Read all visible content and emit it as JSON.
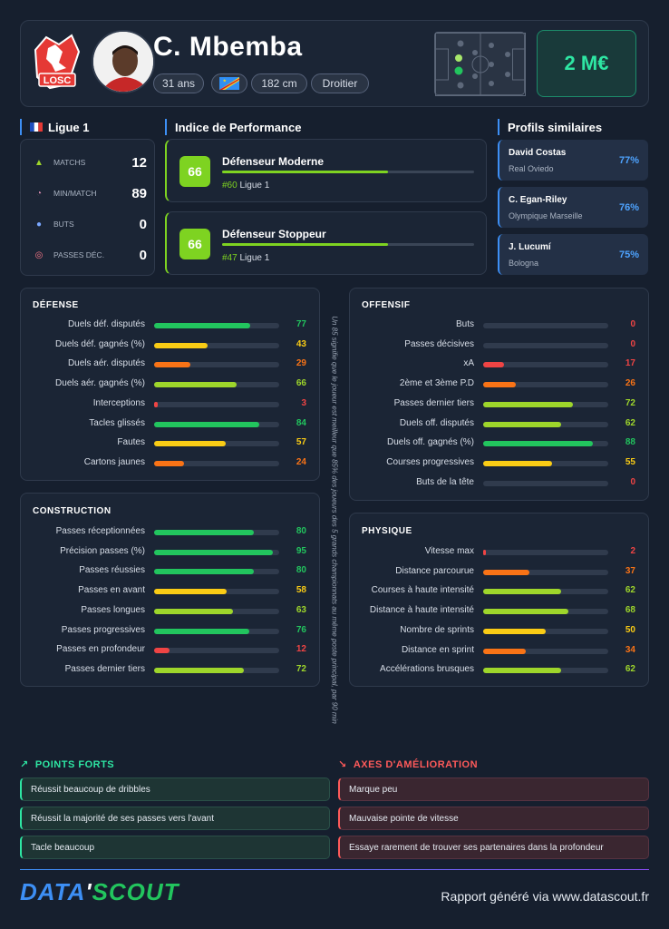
{
  "header": {
    "player_name": "C. Mbemba",
    "age": "31 ans",
    "height": "182 cm",
    "foot": "Droitier",
    "club_logo_text": "LOSC",
    "market_value": "2 M€"
  },
  "league": {
    "title": "Ligue 1",
    "stats": [
      {
        "label": "MATCHS",
        "value": "12",
        "icon": "field-icon"
      },
      {
        "label": "MIN/MATCH",
        "value": "89",
        "icon": "clock-icon"
      },
      {
        "label": "BUTS",
        "value": "0",
        "icon": "ball-icon"
      },
      {
        "label": "PASSES DÉC.",
        "value": "0",
        "icon": "target-icon"
      }
    ]
  },
  "performance": {
    "title": "Indice de Performance",
    "cards": [
      {
        "score": "66",
        "name": "Défenseur Moderne",
        "rank": "#60",
        "league": "Ligue 1",
        "fill": 0.66
      },
      {
        "score": "66",
        "name": "Défenseur Stoppeur",
        "rank": "#47",
        "league": "Ligue 1",
        "fill": 0.66
      }
    ]
  },
  "similar": {
    "title": "Profils similaires",
    "items": [
      {
        "name": "David Costas",
        "club": "Real Oviedo",
        "pct": "77%"
      },
      {
        "name": "C. Egan-Riley",
        "club": "Olympique Marseille",
        "pct": "76%"
      },
      {
        "name": "J. Lucumí",
        "club": "Bologna",
        "pct": "75%"
      }
    ]
  },
  "panels": {
    "defense": {
      "title": "Défense",
      "rows": [
        {
          "label": "Duels déf. disputés",
          "value": 77
        },
        {
          "label": "Duels déf. gagnés (%)",
          "value": 43
        },
        {
          "label": "Duels aér. disputés",
          "value": 29
        },
        {
          "label": "Duels aér. gagnés (%)",
          "value": 66
        },
        {
          "label": "Interceptions",
          "value": 3
        },
        {
          "label": "Tacles glissés",
          "value": 84
        },
        {
          "label": "Fautes",
          "value": 57
        },
        {
          "label": "Cartons jaunes",
          "value": 24
        }
      ]
    },
    "construction": {
      "title": "Construction",
      "rows": [
        {
          "label": "Passes réceptionnées",
          "value": 80
        },
        {
          "label": "Précision passes (%)",
          "value": 95
        },
        {
          "label": "Passes réussies",
          "value": 80
        },
        {
          "label": "Passes en avant",
          "value": 58
        },
        {
          "label": "Passes longues",
          "value": 63
        },
        {
          "label": "Passes progressives",
          "value": 76
        },
        {
          "label": "Passes en profondeur",
          "value": 12
        },
        {
          "label": "Passes dernier tiers",
          "value": 72
        }
      ]
    },
    "offensif": {
      "title": "Offensif",
      "rows": [
        {
          "label": "Buts",
          "value": 0
        },
        {
          "label": "Passes décisives",
          "value": 0
        },
        {
          "label": "xA",
          "value": 17
        },
        {
          "label": "2ème et 3ème P.D",
          "value": 26
        },
        {
          "label": "Passes dernier tiers",
          "value": 72
        },
        {
          "label": "Duels off. disputés",
          "value": 62
        },
        {
          "label": "Duels off. gagnés (%)",
          "value": 88
        },
        {
          "label": "Courses progressives",
          "value": 55
        },
        {
          "label": "Buts de la tête",
          "value": 0
        }
      ]
    },
    "physique": {
      "title": "Physique",
      "rows": [
        {
          "label": "Vitesse max",
          "value": 2
        },
        {
          "label": "Distance parcourue",
          "value": 37
        },
        {
          "label": "Courses à haute intensité",
          "value": 62
        },
        {
          "label": "Distance à haute intensité",
          "value": 68
        },
        {
          "label": "Nombre de sprints",
          "value": 50
        },
        {
          "label": "Distance en sprint",
          "value": 34
        },
        {
          "label": "Accélérations brusques",
          "value": 62
        }
      ]
    }
  },
  "note": "Un 85 signifie que le joueur est meilleur que 85% des joueurs des 5 grands championnats au même poste principal, par 90 min",
  "strengths": {
    "title": "POINTS FORTS",
    "items": [
      "Réussit beaucoup de dribbles",
      "Réussit la majorité de ses passes vers l'avant",
      "Tacle beaucoup"
    ]
  },
  "improvements": {
    "title": "AXES D'AMÉLIORATION",
    "items": [
      "Marque peu",
      "Mauvaise pointe de vitesse",
      "Essaye rarement de trouver ses partenaires dans la profondeur"
    ]
  },
  "footer": {
    "logo_data": "DATA",
    "logo_sep": "'",
    "logo_scout": "SCOUT",
    "text": "Rapport généré via www.datascout.fr"
  },
  "colors": {
    "elite": "#22c55e",
    "good": "#9ed62b",
    "avg": "#facc15",
    "below": "#f97316",
    "poor": "#ef4444",
    "value_green": "#2ee6a3"
  }
}
